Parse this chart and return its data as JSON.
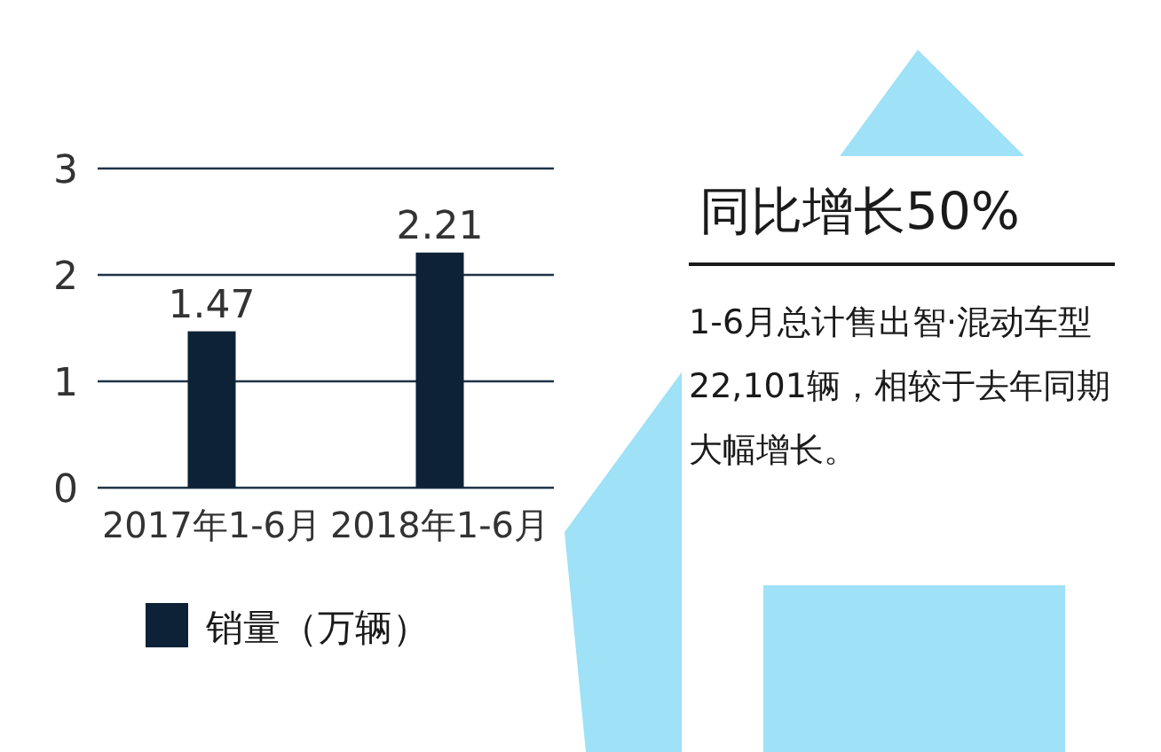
{
  "chart_data": {
    "type": "bar",
    "categories": [
      "2017年1-6月",
      "2018年1-6月"
    ],
    "series": [
      {
        "name": "销量（万辆）",
        "color": "#0d2236",
        "values": [
          1.47,
          2.21
        ]
      }
    ],
    "ylim": [
      0,
      3
    ],
    "yticks": [
      0,
      1,
      2,
      3
    ],
    "grid": "y",
    "legend": "bottom",
    "data_labels": true,
    "annotations": [
      "同比增长50%",
      "1-6月总计售出智·混动车型22,101辆，相较于去年同期大幅增长。"
    ]
  }
}
